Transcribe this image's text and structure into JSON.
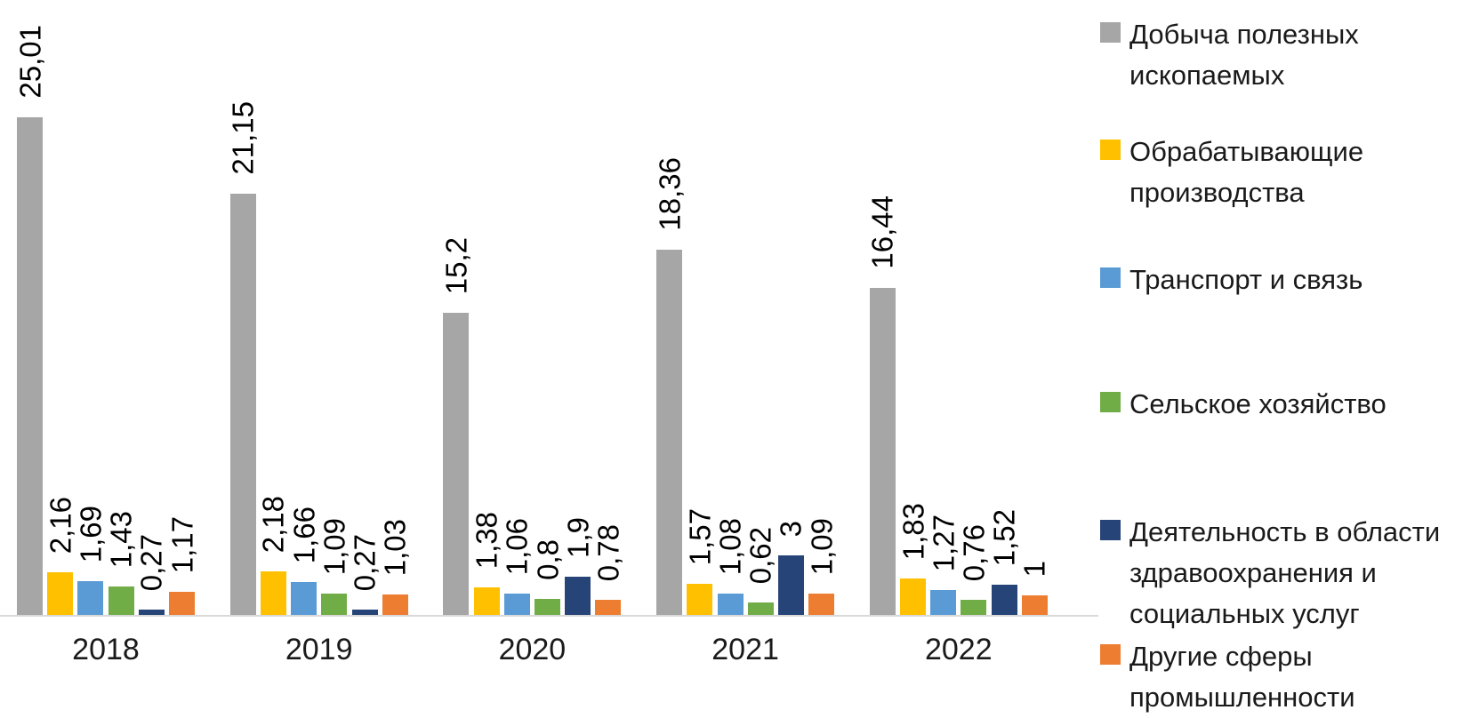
{
  "chart_data": {
    "type": "bar",
    "title": "",
    "xlabel": "",
    "ylabel": "",
    "grid": false,
    "legend_position": "right",
    "axis_line_color": "#d9d9d9",
    "ylim": [
      0,
      25.01
    ],
    "decimal_separator": ",",
    "categories": [
      "2018",
      "2019",
      "2020",
      "2021",
      "2022"
    ],
    "series": [
      {
        "name": "Добыча полезных ископаемых",
        "color": "#a6a6a6",
        "values": [
          25.01,
          21.15,
          15.2,
          18.36,
          16.44
        ],
        "labels": [
          "25,01",
          "21,15",
          "15,2",
          "18,36",
          "16,44"
        ]
      },
      {
        "name": "Обрабатывающие производства",
        "color": "#ffc000",
        "values": [
          2.16,
          2.18,
          1.38,
          1.57,
          1.83
        ],
        "labels": [
          "2,16",
          "2,18",
          "1,38",
          "1,57",
          "1,83"
        ]
      },
      {
        "name": "Транспорт и связь",
        "color": "#5b9bd5",
        "values": [
          1.69,
          1.66,
          1.06,
          1.08,
          1.27
        ],
        "labels": [
          "1,69",
          "1,66",
          "1,06",
          "1,08",
          "1,27"
        ]
      },
      {
        "name": "Сельское хозяйство",
        "color": "#70ad47",
        "values": [
          1.43,
          1.09,
          0.8,
          0.62,
          0.76
        ],
        "labels": [
          "1,43",
          "1,09",
          "0,8",
          "0,62",
          "0,76"
        ]
      },
      {
        "name": "Деятельность в области здравоохранения и социальных услуг",
        "color": "#264478",
        "values": [
          0.27,
          0.27,
          1.9,
          3,
          1.52
        ],
        "labels": [
          "0,27",
          "0,27",
          "1,9",
          "3",
          "1,52"
        ]
      },
      {
        "name": "Другие сферы промышленности",
        "color": "#ed7d31",
        "values": [
          1.17,
          1.03,
          0.78,
          1.09,
          1
        ],
        "labels": [
          "1,17",
          "1,03",
          "0,78",
          "1,09",
          "1"
        ]
      }
    ]
  }
}
